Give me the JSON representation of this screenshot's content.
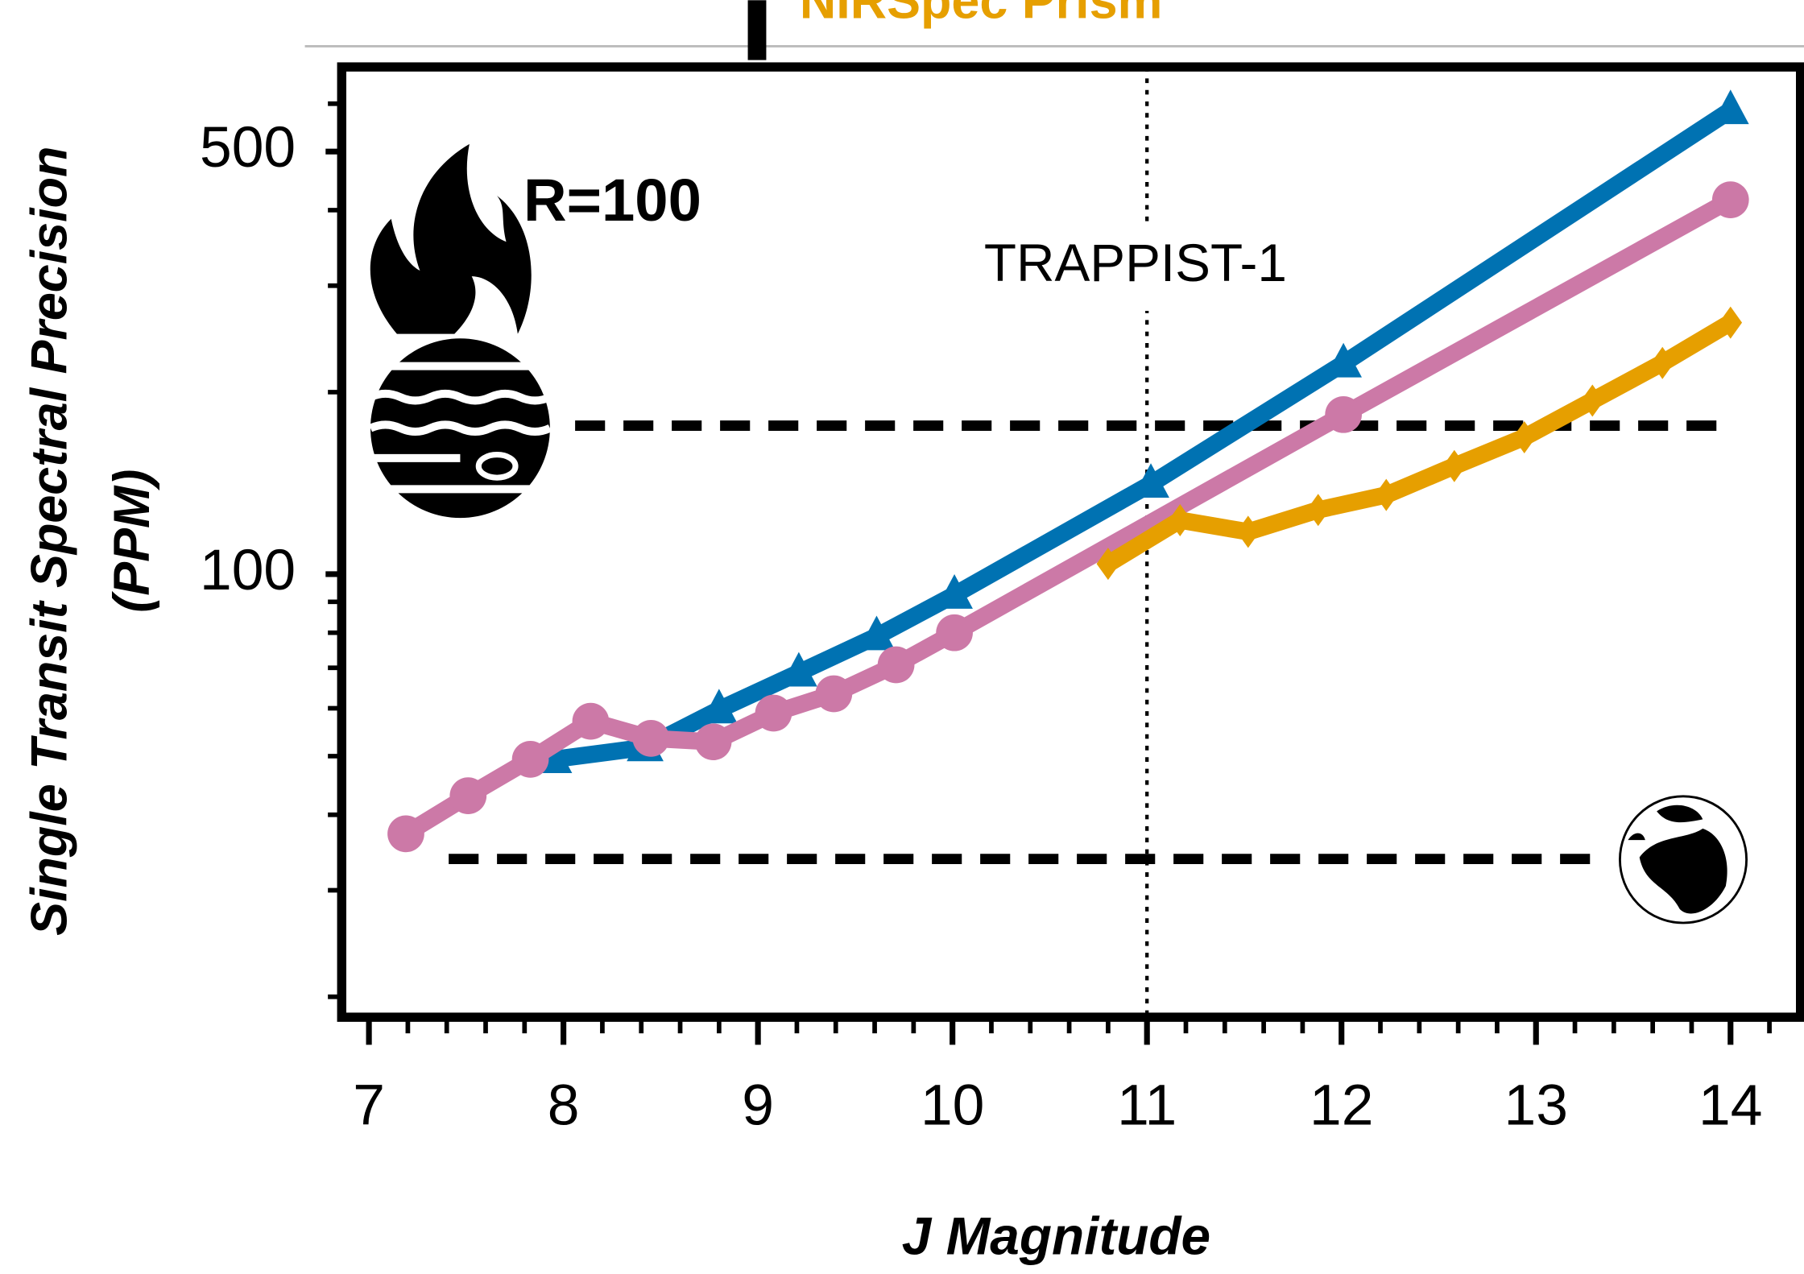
{
  "chart_data": {
    "type": "line",
    "title": "NIRSpec Prism",
    "title_color": "#e69f00",
    "xlabel": "J Magnitude",
    "ylabel": "Single Transit Spectral Precision",
    "ylabel_unit": "(PPM)",
    "log_y": true,
    "xlim": [
      6.86,
      14.36
    ],
    "ylim": [
      18.5,
      690
    ],
    "xticks": [
      7,
      8,
      9,
      10,
      11,
      12,
      13,
      14
    ],
    "xminorticks": [
      7.2,
      7.4,
      7.6,
      7.8,
      8.2,
      8.4,
      8.6,
      8.8,
      9.2,
      9.4,
      9.6,
      9.8,
      10.2,
      10.4,
      10.6,
      10.8,
      11.2,
      11.4,
      11.6,
      11.8,
      12.2,
      12.4,
      12.6,
      12.8,
      13.2,
      13.4,
      13.6,
      13.8,
      14.2
    ],
    "yticks": [
      100,
      500
    ],
    "yminorticks": [
      20,
      30,
      40,
      50,
      60,
      70,
      80,
      90,
      200,
      300,
      400,
      600
    ],
    "series": [
      {
        "color": "#0072b2",
        "marker": "triangle",
        "x": [
          7.95,
          8.42,
          8.8,
          9.21,
          9.61,
          10.01,
          11.02,
          12.01,
          14.0
        ],
        "values": [
          49.4,
          51.7,
          59.7,
          68.7,
          78.9,
          92.4,
          141,
          223,
          585
        ]
      },
      {
        "color": "#cc79a7",
        "marker": "circle",
        "x": [
          7.19,
          7.51,
          7.83,
          8.14,
          8.45,
          8.77,
          9.08,
          9.39,
          9.71,
          10.01,
          12.01,
          14.0
        ],
        "values": [
          37.2,
          43.0,
          49.4,
          57.1,
          53.5,
          52.8,
          58.9,
          63.4,
          70.8,
          80.0,
          183.6,
          416
        ]
      },
      {
        "color": "#e69f00",
        "marker": "diamond",
        "x": [
          10.8,
          11.17,
          11.52,
          11.88,
          12.23,
          12.58,
          12.94,
          13.29,
          13.65,
          14.0
        ],
        "values": [
          104,
          122.8,
          117.5,
          127.7,
          135.2,
          150.9,
          168.4,
          193.6,
          223.5,
          260.6
        ]
      }
    ],
    "hlines": [
      {
        "y": 176,
        "xrange": [
          8.06,
          13.94
        ]
      },
      {
        "y": 33.8,
        "xrange": [
          7.41,
          13.29
        ]
      }
    ],
    "vline": {
      "x": 11,
      "label": "TRAPPIST-1"
    },
    "annotation": "R=100"
  }
}
